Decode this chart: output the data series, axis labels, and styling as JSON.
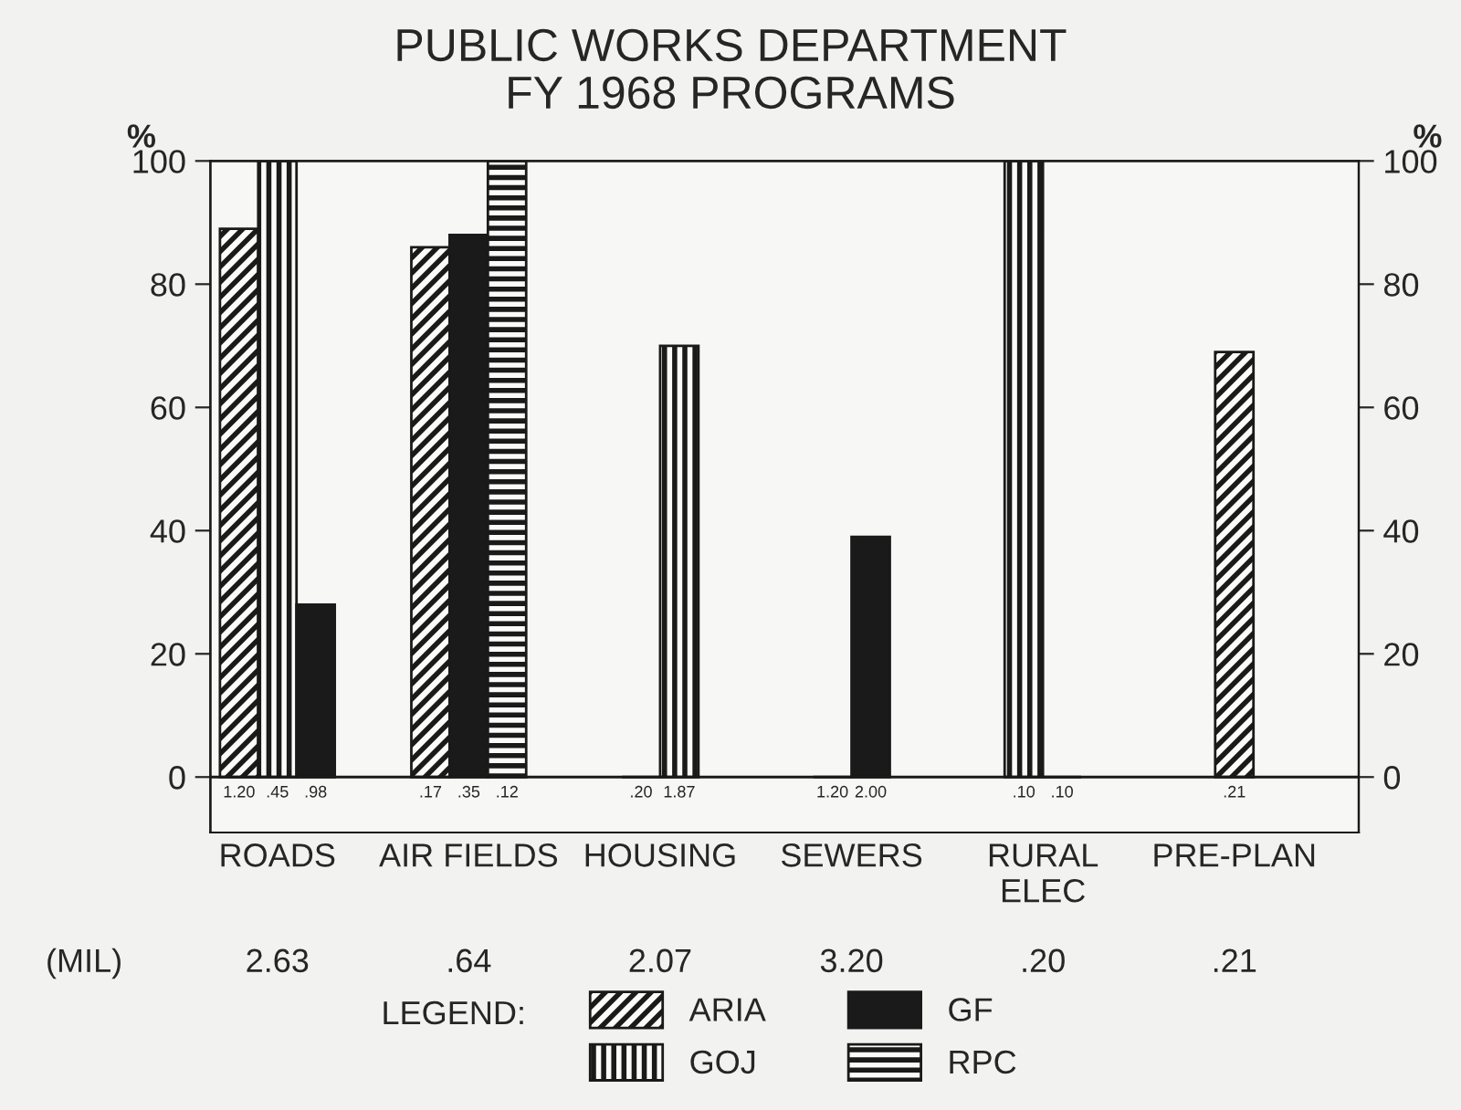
{
  "chart_data": {
    "type": "bar",
    "title": "PUBLIC WORKS DEPARTMENT\nFY 1968 PROGRAMS",
    "categories": [
      "ROADS",
      "AIR FIELDS",
      "HOUSING",
      "SEWERS",
      "RURAL\nELEC",
      "PRE-PLAN"
    ],
    "series": [
      {
        "name": "ARIA",
        "color": "#1a1a1a",
        "values": [
          89,
          86,
          0,
          0,
          null,
          69
        ]
      },
      {
        "name": "GOJ",
        "color": "#1a1a1a",
        "values": [
          100,
          null,
          70,
          null,
          100,
          null
        ]
      },
      {
        "name": "GF",
        "color": "#1a1a1a",
        "values": [
          28,
          88,
          null,
          39,
          0,
          null
        ]
      },
      {
        "name": "RPC",
        "color": "#1a1a1a",
        "values": [
          null,
          100,
          null,
          null,
          null,
          null
        ]
      }
    ],
    "ylim": [
      -9,
      100
    ],
    "yticks": [
      0,
      20,
      40,
      60,
      80,
      100
    ],
    "y2lim": [
      -9,
      100
    ],
    "y2ticks": [
      0,
      20,
      40,
      60,
      80,
      100
    ],
    "ylabel": "%",
    "y2label": "%",
    "ref_lines": [
      {
        "axis": "y",
        "value": 0,
        "color": "#1a1a1a"
      }
    ],
    "annotations": [
      "1.20",
      ".45",
      ".98",
      ".17",
      ".35",
      ".12",
      ".20",
      "1.87",
      "1.20",
      "2.00",
      ".10",
      ".10",
      ".21",
      "(MIL)",
      "2.63",
      ".64",
      "2.07",
      "3.20",
      ".20",
      ".21"
    ],
    "legend": "bottom",
    "legend_title": "LEGEND:",
    "grid": false
  }
}
